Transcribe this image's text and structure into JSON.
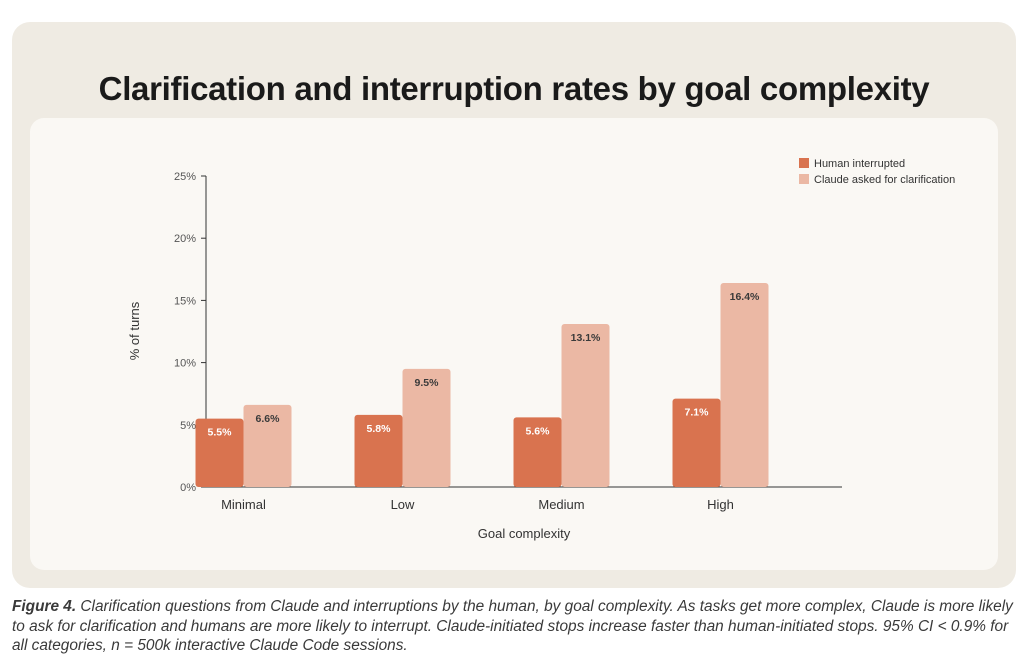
{
  "page": {
    "title": "Clarification and interruption rates by goal complexity",
    "caption_label": "Figure 4.",
    "caption_text": " Clarification questions from Claude and interruptions by the human, by goal complexity. As tasks get more complex, Claude is more likely to ask for clarification and humans are more likely to interrupt. Claude-initiated stops increase faster than human-initiated stops. 95% CI < 0.9% for all categories, n = 500k interactive Claude Code sessions."
  },
  "colors": {
    "human": "#d9734f",
    "claude": "#ebb8a4",
    "axis": "#333333"
  },
  "chart_data": {
    "type": "bar",
    "title": "Clarification and interruption rates by goal complexity",
    "xlabel": "Goal complexity",
    "ylabel": "% of turns",
    "categories": [
      "Minimal",
      "Low",
      "Medium",
      "High"
    ],
    "series": [
      {
        "name": "Human interrupted",
        "values": [
          5.5,
          5.8,
          5.6,
          7.1
        ],
        "labels": [
          "5.5%",
          "5.8%",
          "5.6%",
          "7.1%"
        ]
      },
      {
        "name": "Claude asked for clarification",
        "values": [
          6.6,
          9.5,
          13.1,
          16.4
        ],
        "labels": [
          "6.6%",
          "9.5%",
          "13.1%",
          "16.4%"
        ]
      }
    ],
    "ylim": [
      0,
      25
    ],
    "yticks": [
      0,
      5,
      10,
      15,
      20,
      25
    ],
    "ytick_labels": [
      "0%",
      "5%",
      "10%",
      "15%",
      "20%",
      "25%"
    ],
    "grid": false,
    "legend_position": "top-right"
  }
}
